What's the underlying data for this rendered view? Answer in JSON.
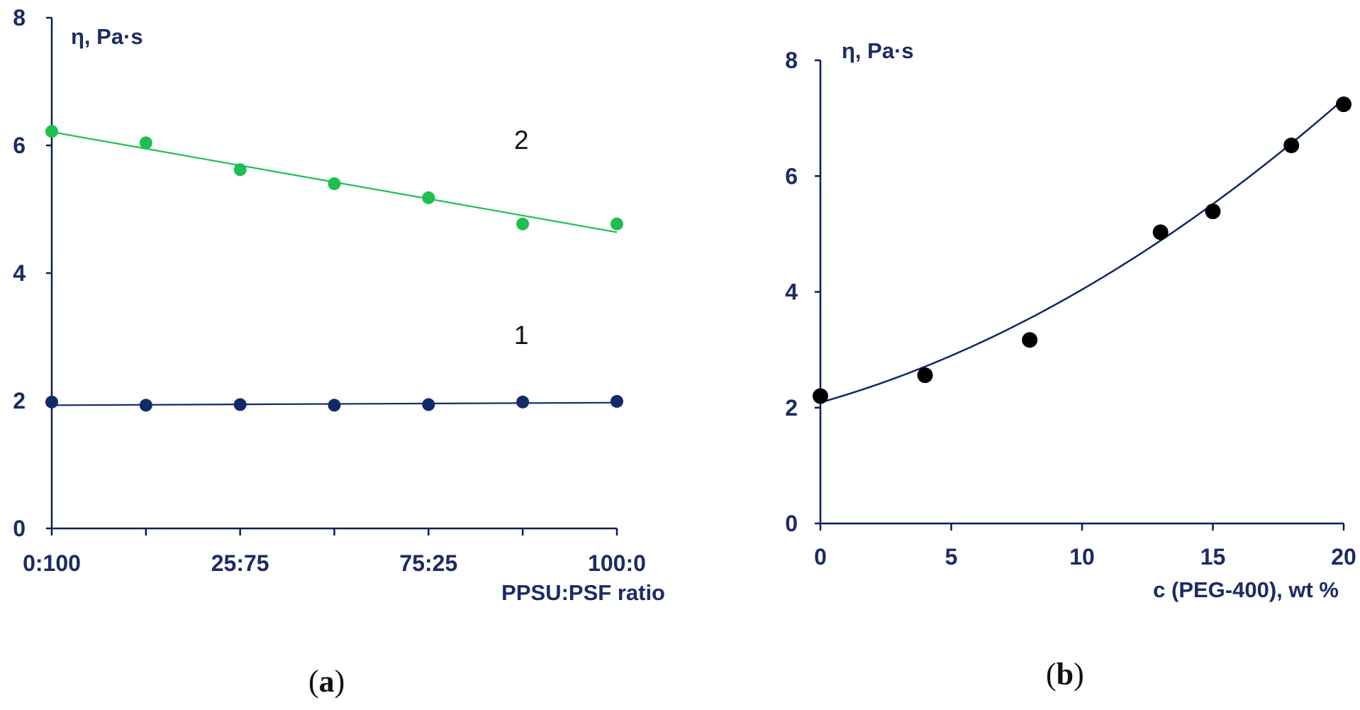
{
  "colors": {
    "axis": "#0b1c58",
    "text": "#1c2b63",
    "series_1": "#112a6b",
    "series_2": "#1dbf50",
    "points_b": "#000000",
    "fit_b": "#0f2766"
  },
  "chart_data": [
    {
      "panel_label": "a",
      "type": "scatter",
      "ylabel": "η, Pa·s",
      "xlabel": "PPSU:PSF ratio",
      "ylim": [
        0,
        8
      ],
      "yticks": [
        "0",
        "2",
        "4",
        "6",
        "8"
      ],
      "xticks": [
        "0:100",
        "",
        "25:75",
        "",
        "75:25",
        "",
        "100:0"
      ],
      "xtick_labels": [
        "0:100",
        "25:75",
        "75:25",
        "100:0"
      ],
      "grid": false,
      "series": [
        {
          "name": "1",
          "color": "#112a6b",
          "x": [
            0,
            1,
            2,
            3,
            4,
            5,
            6
          ],
          "y": [
            1.98,
            1.93,
            1.94,
            1.93,
            1.94,
            1.98,
            1.99
          ],
          "fit": {
            "kind": "linear",
            "y_start": 1.93,
            "y_end": 1.97
          }
        },
        {
          "name": "2",
          "color": "#1dbf50",
          "x": [
            0,
            1,
            2,
            3,
            4,
            5,
            6
          ],
          "y": [
            6.22,
            6.04,
            5.62,
            5.4,
            5.18,
            4.77,
            4.77
          ],
          "fit": {
            "kind": "linear",
            "y_start": 6.21,
            "y_end": 4.64
          }
        }
      ]
    },
    {
      "panel_label": "b",
      "type": "scatter",
      "ylabel": "η, Pa·s",
      "xlabel": "c (PEG-400), wt %",
      "xlim": [
        0,
        20
      ],
      "ylim": [
        0,
        8
      ],
      "xticks": [
        "0",
        "5",
        "10",
        "15",
        "20"
      ],
      "yticks": [
        "0",
        "2",
        "4",
        "6",
        "8"
      ],
      "grid": false,
      "series": [
        {
          "x": [
            0,
            4,
            8,
            13,
            15,
            18,
            20
          ],
          "y": [
            2.2,
            2.56,
            3.17,
            5.03,
            5.39,
            6.53,
            7.24
          ],
          "fit": {
            "kind": "quadratic",
            "coef": [
              2.09,
              0.128,
              0.0067
            ]
          }
        }
      ]
    }
  ]
}
